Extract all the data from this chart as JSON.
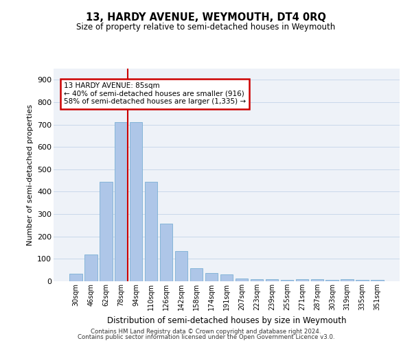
{
  "title": "13, HARDY AVENUE, WEYMOUTH, DT4 0RQ",
  "subtitle": "Size of property relative to semi-detached houses in Weymouth",
  "xlabel": "Distribution of semi-detached houses by size in Weymouth",
  "ylabel": "Number of semi-detached properties",
  "categories": [
    "30sqm",
    "46sqm",
    "62sqm",
    "78sqm",
    "94sqm",
    "110sqm",
    "126sqm",
    "142sqm",
    "158sqm",
    "174sqm",
    "191sqm",
    "207sqm",
    "223sqm",
    "239sqm",
    "255sqm",
    "271sqm",
    "287sqm",
    "303sqm",
    "319sqm",
    "335sqm",
    "351sqm"
  ],
  "values": [
    35,
    118,
    445,
    710,
    710,
    445,
    258,
    135,
    58,
    38,
    30,
    13,
    10,
    10,
    5,
    10,
    8,
    5,
    8,
    5,
    5
  ],
  "bar_color": "#aec6e8",
  "bar_edge_color": "#7aafd4",
  "grid_color": "#c8d8ea",
  "background_color": "#eef2f8",
  "vline_color": "#cc0000",
  "annotation_box_color": "#cc0000",
  "ylim": [
    0,
    950
  ],
  "yticks": [
    0,
    100,
    200,
    300,
    400,
    500,
    600,
    700,
    800,
    900
  ],
  "annotation_line1": "13 HARDY AVENUE: 85sqm",
  "annotation_line2": "← 40% of semi-detached houses are smaller (916)",
  "annotation_line3": "58% of semi-detached houses are larger (1,335) →",
  "footer1": "Contains HM Land Registry data © Crown copyright and database right 2024.",
  "footer2": "Contains public sector information licensed under the Open Government Licence v3.0."
}
